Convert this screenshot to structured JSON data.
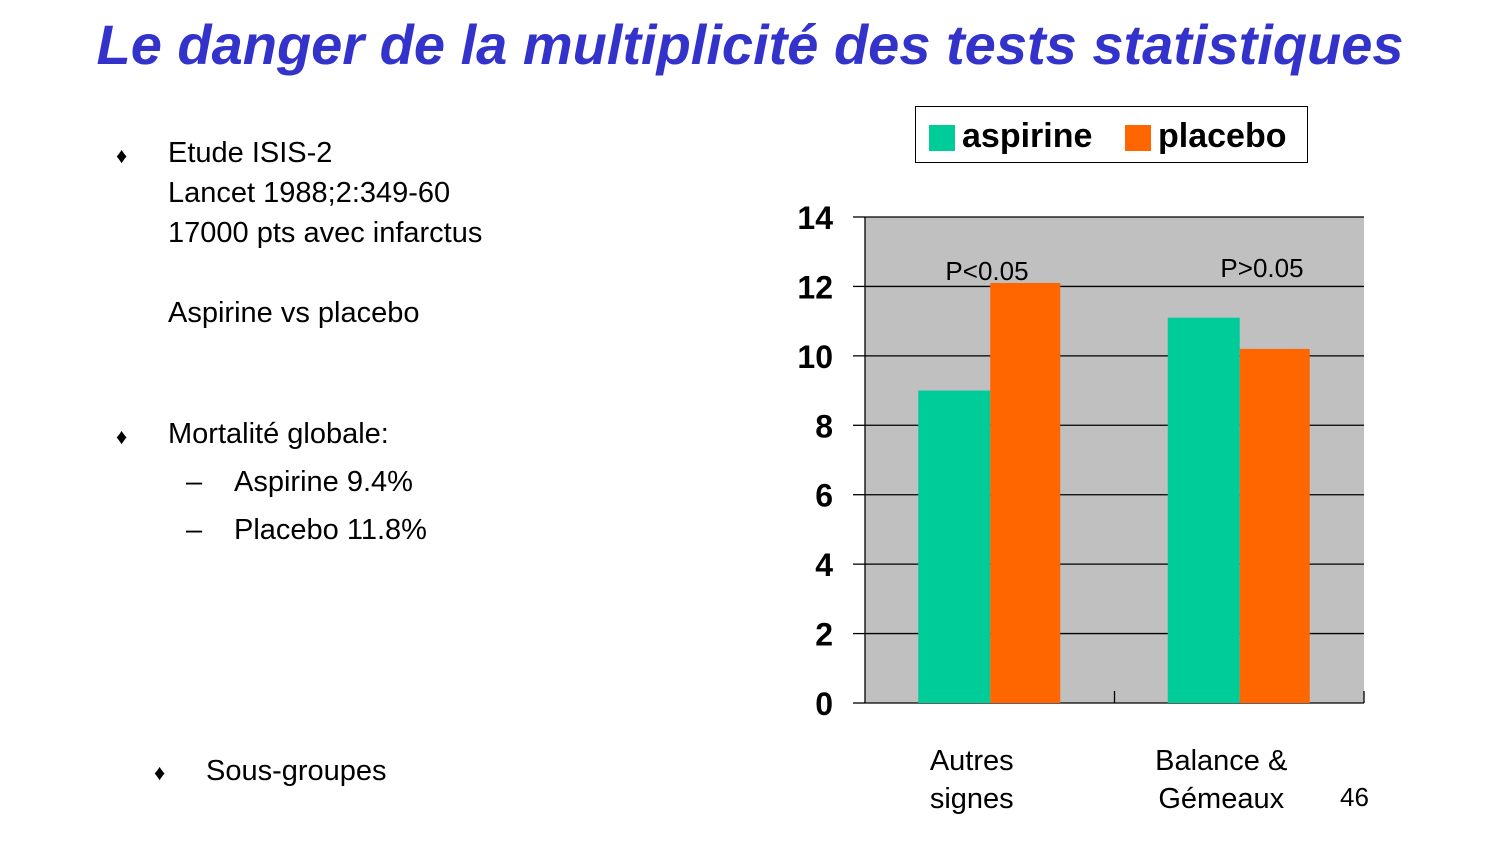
{
  "slide": {
    "title": "Le danger de la multiplicité des tests statistiques",
    "page_number": "46"
  },
  "left": {
    "bullet_glyph": "♦",
    "dash_glyph": "–",
    "study": [
      "Etude ISIS-2",
      "Lancet 1988;2:349-60",
      "17000 pts avec infarctus"
    ],
    "comparison": "Aspirine vs placebo",
    "mortality_heading": "Mortalité globale:",
    "mortality_items": [
      "Aspirine 9.4%",
      "Placebo 11.8%"
    ],
    "subgroups": "Sous-groupes"
  },
  "chart_data": {
    "type": "bar",
    "categories": [
      [
        "Autres",
        "signes"
      ],
      [
        "Balance &",
        "Gémeaux"
      ]
    ],
    "series": [
      {
        "name": "aspirine",
        "color": "#00cc99",
        "values": [
          9.0,
          11.1
        ]
      },
      {
        "name": "placebo",
        "color": "#ff6600",
        "values": [
          12.1,
          10.2
        ]
      }
    ],
    "annotations": [
      "P<0.05",
      "P>0.05"
    ],
    "ylim": [
      0,
      14
    ],
    "yticks": [
      0,
      2,
      4,
      6,
      8,
      10,
      12,
      14
    ],
    "grid": true,
    "plot_background": "#c0c0c0",
    "legend_position": "top"
  }
}
